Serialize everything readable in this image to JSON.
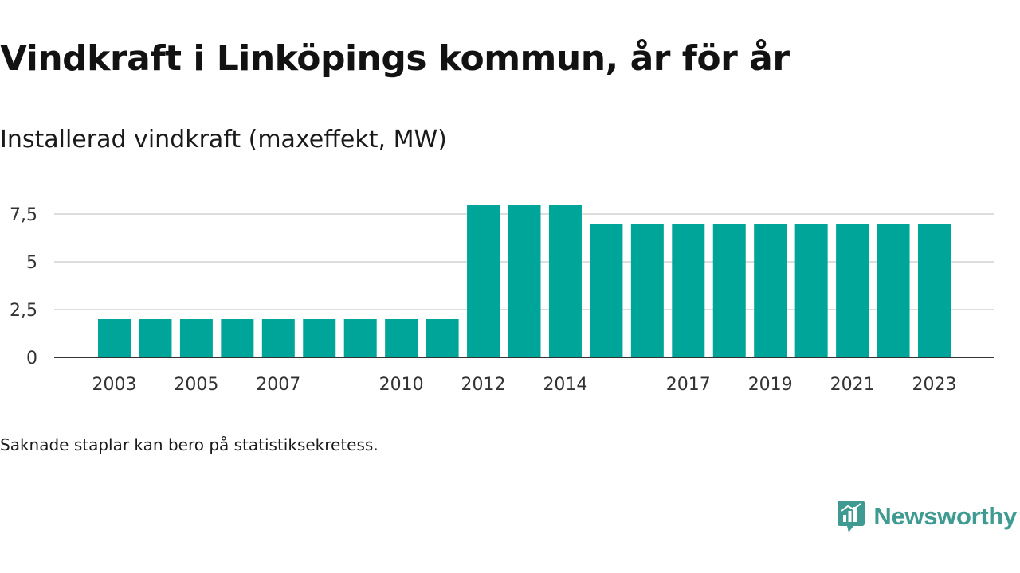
{
  "title": "Vindkraft i Linköpings kommun, år för år",
  "subtitle": "Installerad vindkraft (maxeffekt, MW)",
  "note": "Saknade staplar kan bero på statistiksekretess.",
  "brand": {
    "name": "Newsworthy",
    "icon": "newsworthy-logo-icon",
    "color": "#3f9b91"
  },
  "chart_data": {
    "type": "bar",
    "categories": [
      "2003",
      "2004",
      "2005",
      "2006",
      "2007",
      "2008",
      "2009",
      "2010",
      "2011",
      "2012",
      "2013",
      "2014",
      "2015",
      "2016",
      "2017",
      "2018",
      "2019",
      "2020",
      "2021",
      "2022",
      "2023"
    ],
    "values": [
      2,
      2,
      2,
      2,
      2,
      2,
      2,
      2,
      2,
      8,
      8,
      8,
      7,
      7,
      7,
      7,
      7,
      7,
      7,
      7,
      7
    ],
    "x_tick_labels": [
      "2003",
      "2005",
      "2007",
      "2010",
      "2012",
      "2014",
      "2017",
      "2019",
      "2021",
      "2023"
    ],
    "y_ticks": [
      0,
      2.5,
      5,
      7.5
    ],
    "y_tick_labels": [
      "0",
      "2,5",
      "5",
      "7,5"
    ],
    "ylim": [
      0,
      8.2
    ],
    "xlabel": "",
    "ylabel": "",
    "grid": true,
    "bar_color": "#00a599",
    "grid_color": "#dddddd",
    "axis_color": "#333333"
  }
}
